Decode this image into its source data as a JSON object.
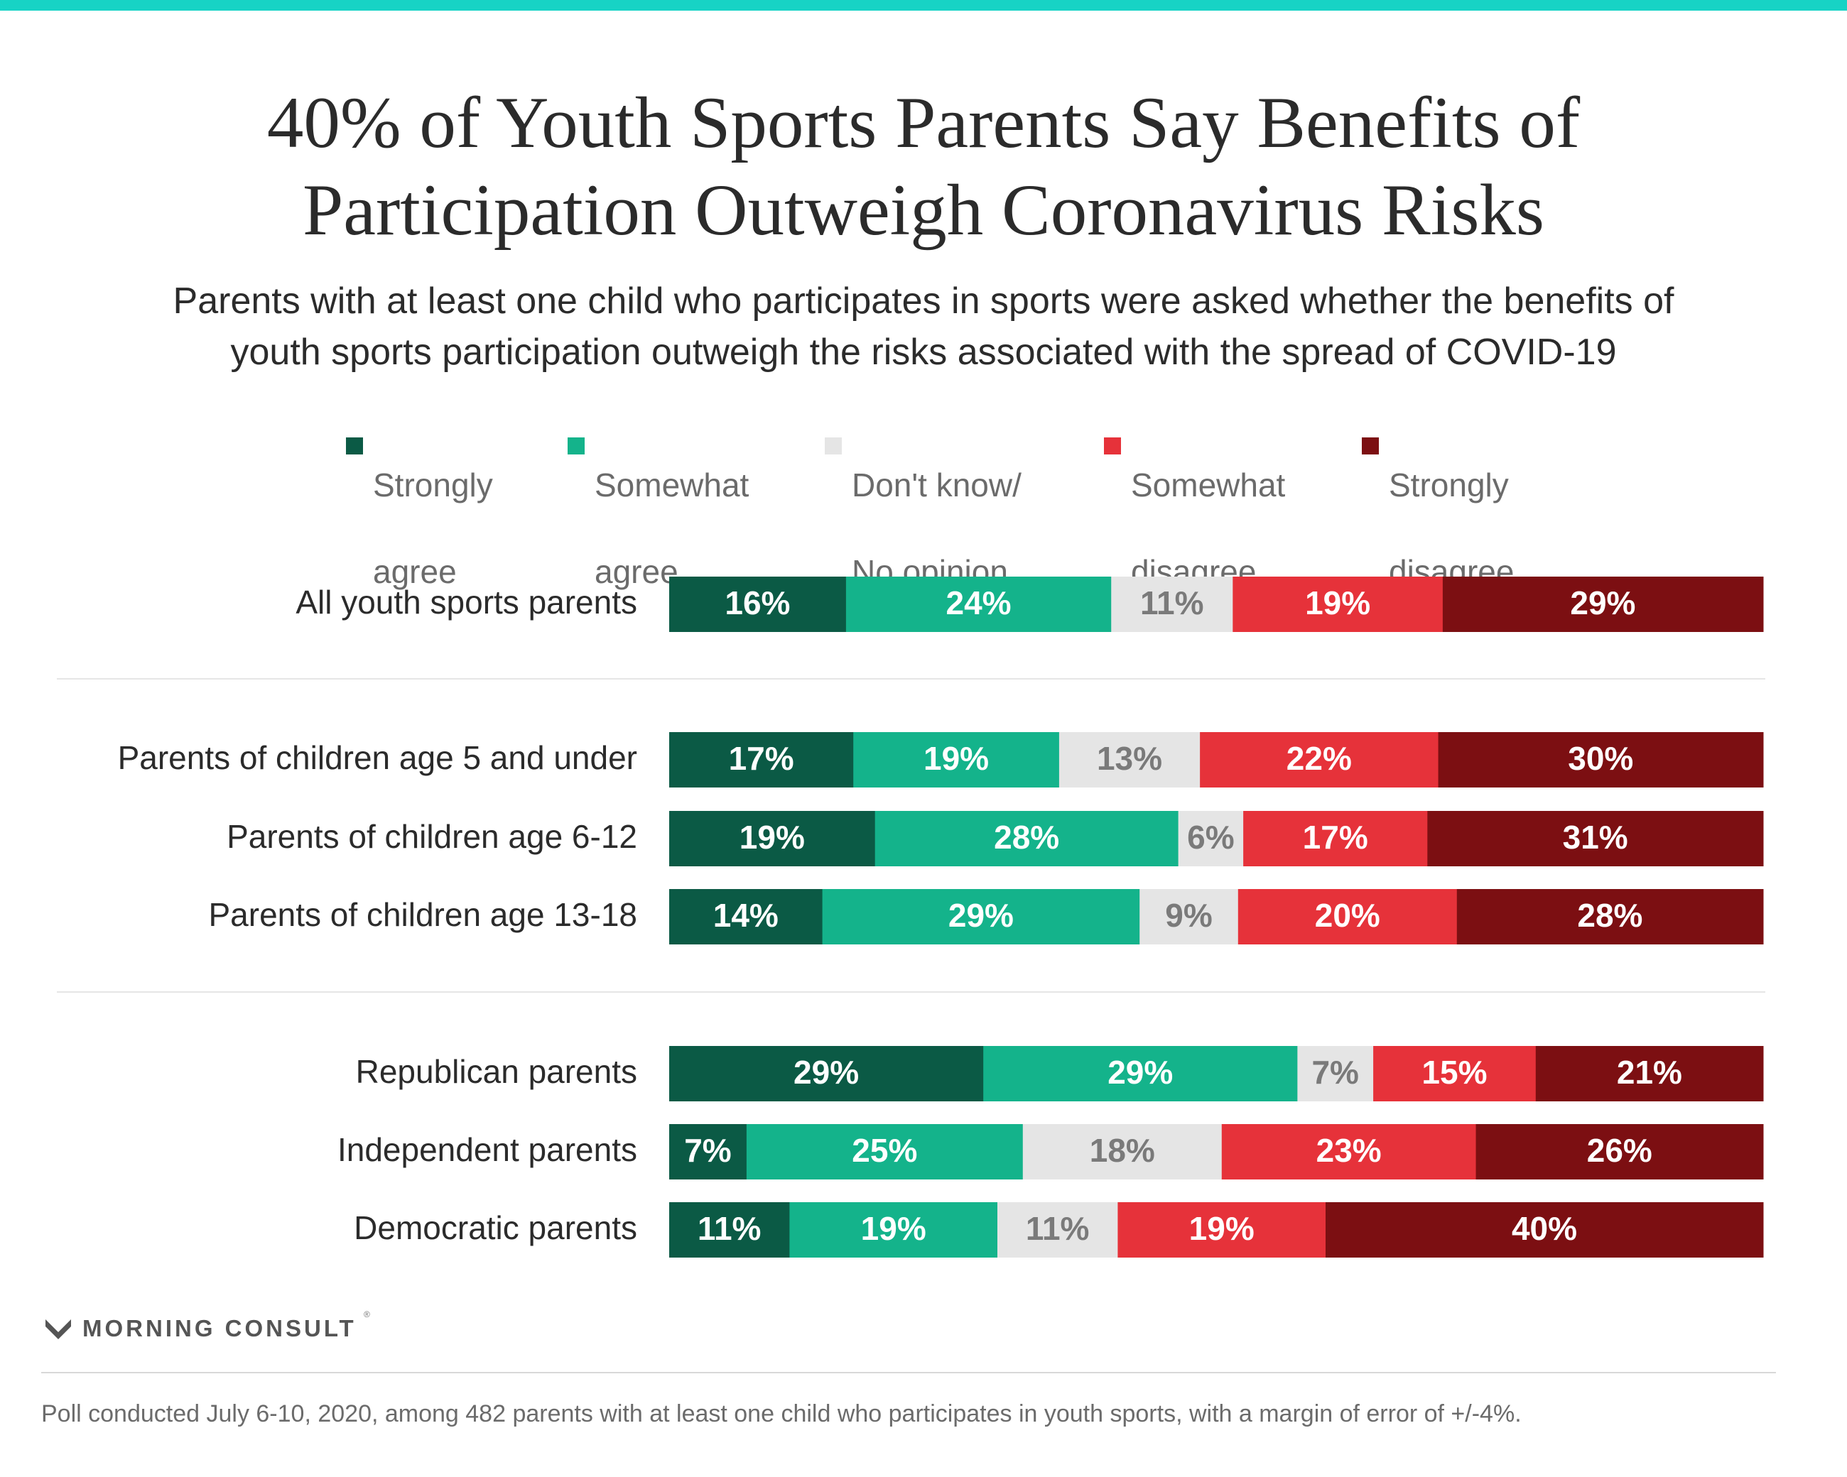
{
  "title_lines": [
    "40% of Youth Sports Parents Say Benefits of",
    "Participation Outweigh Coronavirus Risks"
  ],
  "subtitle_lines": [
    "Parents with at least one child who participates in sports were asked whether the benefits of",
    "youth sports participation outweigh the risks associated with the spread of COVID-19"
  ],
  "colors": {
    "strongly_agree": "#0b5a45",
    "somewhat_agree": "#14b38b",
    "dont_know": "#e5e5e5",
    "somewhat_disagree": "#e6323a",
    "strongly_disagree": "#7c0f12",
    "label_light": "#ffffff",
    "label_dark": "#7a7a7a",
    "accent_bar": "#17d3c5"
  },
  "chart_data": {
    "type": "bar",
    "orientation": "horizontal",
    "stacked": true,
    "xlim": [
      0,
      100
    ],
    "legend_placement": "top-center",
    "grid": false,
    "series": [
      {
        "name": "Strongly agree",
        "legend_lines": [
          "Strongly",
          "agree"
        ],
        "color_key": "strongly_agree"
      },
      {
        "name": "Somewhat agree",
        "legend_lines": [
          "Somewhat",
          "agree"
        ],
        "color_key": "somewhat_agree"
      },
      {
        "name": "Don't know/ No opinion",
        "legend_lines": [
          "Don't know/",
          "No opinion"
        ],
        "color_key": "dont_know"
      },
      {
        "name": "Somewhat disagree",
        "legend_lines": [
          "Somewhat",
          "disagree"
        ],
        "color_key": "somewhat_disagree"
      },
      {
        "name": "Strongly disagree",
        "legend_lines": [
          "Strongly",
          "disagree"
        ],
        "color_key": "strongly_disagree"
      }
    ],
    "groups": [
      {
        "rows": [
          {
            "category": "All youth sports parents",
            "values": [
              16,
              24,
              11,
              19,
              29
            ]
          }
        ]
      },
      {
        "rows": [
          {
            "category": "Parents of children age 5 and under",
            "values": [
              17,
              19,
              13,
              22,
              30
            ]
          },
          {
            "category": "Parents of children age 6-12",
            "values": [
              19,
              28,
              6,
              17,
              31
            ]
          },
          {
            "category": "Parents of children age 13-18",
            "values": [
              14,
              29,
              9,
              20,
              28
            ]
          }
        ]
      },
      {
        "rows": [
          {
            "category": "Republican parents",
            "values": [
              29,
              29,
              7,
              15,
              21
            ]
          },
          {
            "category": "Independent parents",
            "values": [
              7,
              25,
              18,
              23,
              26
            ]
          },
          {
            "category": "Democratic parents",
            "values": [
              11,
              19,
              11,
              19,
              40
            ]
          }
        ]
      }
    ]
  },
  "logo": {
    "text": "MORNING CONSULT",
    "mark": "®"
  },
  "footnote": "Poll conducted July 6-10, 2020, among 482 parents with at least one child who participates in youth sports, with a margin of error of +/-4%."
}
